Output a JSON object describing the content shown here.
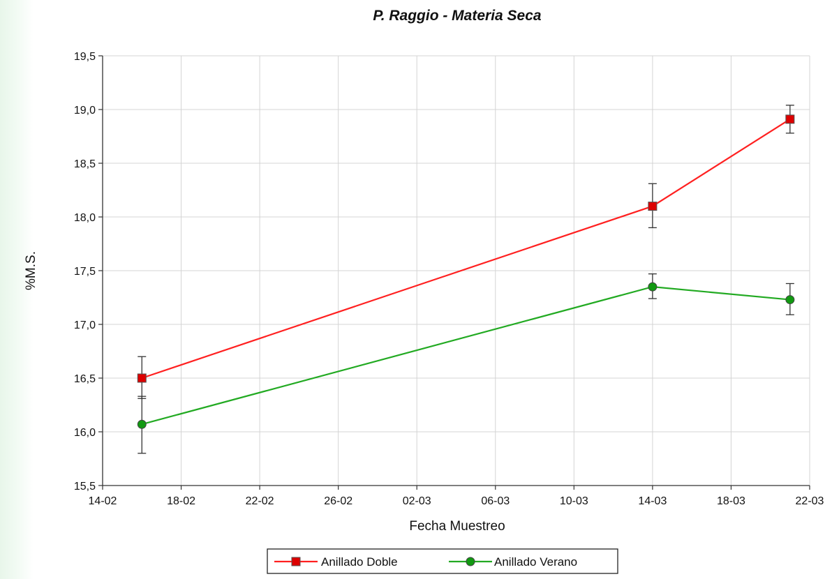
{
  "chart_data": {
    "type": "line",
    "title": "P. Raggio - Materia Seca",
    "xlabel": "Fecha Muestreo",
    "ylabel": "%M.S.",
    "x_type": "date",
    "x_ticks": [
      "14-02",
      "18-02",
      "22-02",
      "26-02",
      "02-03",
      "06-03",
      "10-03",
      "14-03",
      "18-03",
      "22-03"
    ],
    "ylim": [
      15.5,
      19.5
    ],
    "y_ticks": [
      "15,5",
      "16,0",
      "16,5",
      "17,0",
      "17,5",
      "18,0",
      "18,5",
      "19,0",
      "19,5"
    ],
    "grid": true,
    "legend_position": "bottom",
    "series": [
      {
        "name": "Anillado Doble",
        "color": "#ff2020",
        "marker_color": "#dd0000",
        "marker": "square",
        "points": [
          {
            "x": "16-02",
            "y": 16.5,
            "err_low": 16.31,
            "err_high": 16.7
          },
          {
            "x": "14-03",
            "y": 18.1,
            "err_low": 17.9,
            "err_high": 18.31
          },
          {
            "x": "21-03",
            "y": 18.91,
            "err_low": 18.78,
            "err_high": 19.04
          }
        ]
      },
      {
        "name": "Anillado Verano",
        "color": "#22aa22",
        "marker_color": "#119911",
        "marker": "circle",
        "points": [
          {
            "x": "16-02",
            "y": 16.07,
            "err_low": 15.8,
            "err_high": 16.33
          },
          {
            "x": "14-03",
            "y": 17.35,
            "err_low": 17.24,
            "err_high": 17.47
          },
          {
            "x": "21-03",
            "y": 17.23,
            "err_low": 17.09,
            "err_high": 17.38
          }
        ]
      }
    ]
  }
}
